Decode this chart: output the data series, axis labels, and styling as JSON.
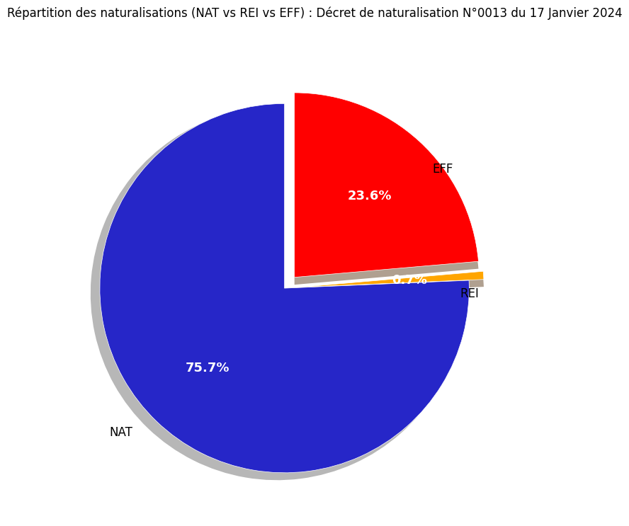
{
  "title": "Répartition des naturalisations (NAT vs REI vs EFF) : Décret de naturalisation N°0013 du 17 Janvier 2024",
  "labels": [
    "EFF",
    "REI",
    "NAT"
  ],
  "values": [
    23.6,
    0.7,
    75.6
  ],
  "colors": [
    "#ff0000",
    "#ffa500",
    "#2626c8"
  ],
  "explode_ef_rei": 0.08,
  "pct_colors": [
    "white",
    "white",
    "white"
  ],
  "shadow_color": "#999999",
  "background_color": "#ffffff",
  "title_fontsize": 12,
  "pct_fontsize": 13,
  "label_fontsize": 12,
  "startangle": 90,
  "tan_color": "#b0a090"
}
